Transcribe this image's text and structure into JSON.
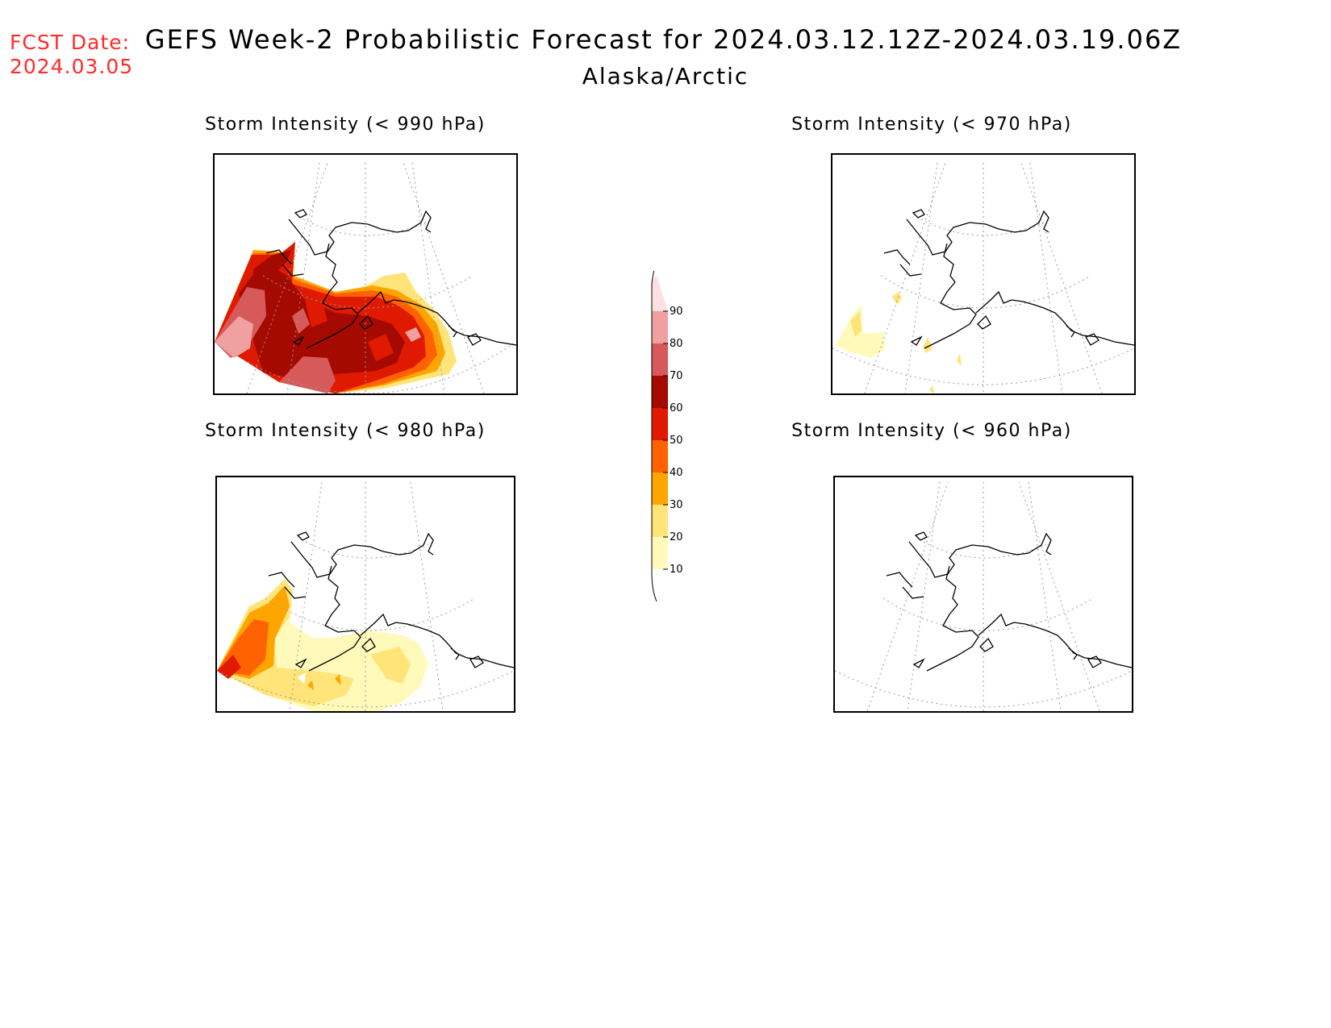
{
  "header": {
    "fcst_label": "FCST Date:",
    "fcst_date": "2024.03.05",
    "title": "GEFS Week-2 Probabilistic Forecast for 2024.03.12.12Z-2024.03.19.06Z",
    "region": "Alaska/Arctic"
  },
  "panels": [
    {
      "title": "Storm Intensity (< 990 hPa)",
      "threshold_hPa": 990,
      "max_probability": 80
    },
    {
      "title": "Storm Intensity (< 970 hPa)",
      "threshold_hPa": 970,
      "max_probability": 20
    },
    {
      "title": "Storm Intensity (< 980 hPa)",
      "threshold_hPa": 980,
      "max_probability": 50
    },
    {
      "title": "Storm Intensity (< 960 hPa)",
      "threshold_hPa": 960,
      "max_probability": 0
    }
  ],
  "colorbar": {
    "levels": [
      "10",
      "20",
      "30",
      "40",
      "50",
      "60",
      "70",
      "80",
      "90"
    ],
    "colors": [
      "#fffaba",
      "#ffe47a",
      "#ffa500",
      "#ff6200",
      "#e01a00",
      "#a50a00",
      "#d65a5a",
      "#f0a0a0",
      "#ffe0e0"
    ]
  }
}
